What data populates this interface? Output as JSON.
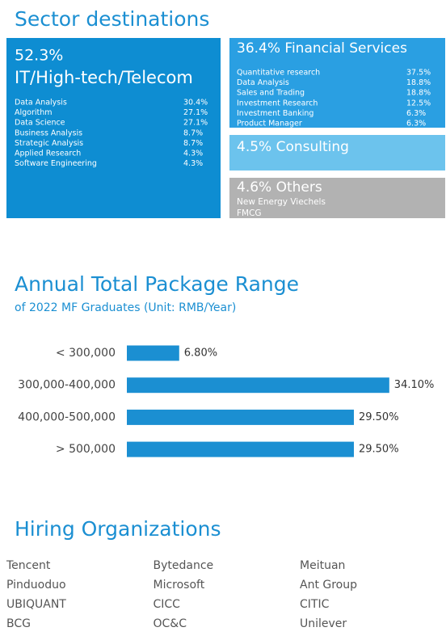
{
  "sectors": {
    "title": "Sector destinations",
    "main": {
      "share": "52.3%",
      "name": "IT/High-tech/Telecom",
      "items": [
        [
          "Data Analysis",
          "30.4%"
        ],
        [
          "Algorithm",
          "27.1%"
        ],
        [
          "Data Science",
          "27.1%"
        ],
        [
          "Business Analysis",
          "8.7%"
        ],
        [
          "Strategic Analysis",
          "8.7%"
        ],
        [
          "Applied Research",
          "4.3%"
        ],
        [
          "Software Engineering",
          "4.3%"
        ]
      ]
    },
    "financial": {
      "heading": "36.4% Financial Services",
      "items": [
        [
          "Quantitative research",
          "37.5%"
        ],
        [
          "Data Analysis",
          "18.8%"
        ],
        [
          "Sales and Trading",
          "18.8%"
        ],
        [
          "Investment Research",
          "12.5%"
        ],
        [
          "Investment Banking",
          "6.3%"
        ],
        [
          "Product Manager",
          "6.3%"
        ]
      ]
    },
    "consulting": {
      "heading": "4.5% Consulting"
    },
    "others": {
      "heading": "4.6% Others",
      "items": [
        "New Energy Viechels",
        "FMCG"
      ]
    }
  },
  "chart_data": {
    "type": "bar",
    "orientation": "horizontal",
    "title": "Annual Total Package Range",
    "subtitle": "of 2022 MF Graduates (Unit: RMB/Year)",
    "categories": [
      "< 300,000",
      "300,000-400,000",
      "400,000-500,000",
      "> 500,000"
    ],
    "values": [
      6.8,
      34.1,
      29.5,
      29.5
    ],
    "value_labels": [
      "6.80%",
      "34.10%",
      "29.50%",
      "29.50%"
    ],
    "color": "#1b8fd2",
    "xlim": [
      0,
      40
    ]
  },
  "hiring": {
    "title": "Hiring Organizations",
    "organizations": [
      "Tencent",
      "Bytedance",
      "Meituan",
      "Pinduoduo",
      "Microsoft",
      "Ant Group",
      "UBIQUANT",
      "CICC",
      "CITIC",
      "BCG",
      "OC&C",
      "Unilever"
    ]
  }
}
